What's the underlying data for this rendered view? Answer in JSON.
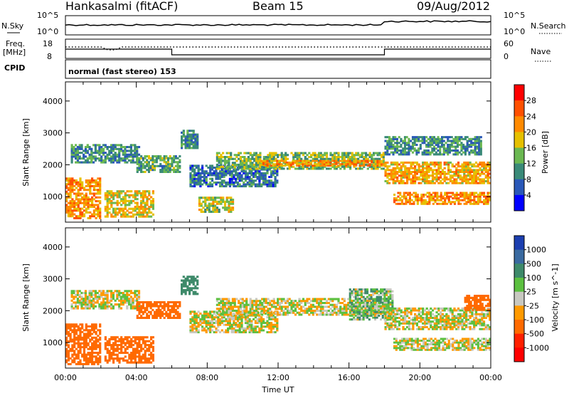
{
  "header": {
    "station": "Hankasalmi (fitACF)",
    "beam": "Beam 15",
    "date": "09/Aug/2012"
  },
  "strip_panels": {
    "nsky_label": "N.Sky",
    "nsearch_label": "N.Search",
    "counts_ticks": [
      "10^5",
      "10^0"
    ],
    "freq_label_1": "Freq.",
    "freq_label_2": "[MHz]",
    "freq_ticks": [
      "18",
      "8"
    ],
    "nave_ticks": [
      "60",
      "0"
    ],
    "nave_label": "Nave",
    "cpid_label": "CPID",
    "cpid_text": "normal (fast stereo) 153"
  },
  "chart_data": [
    {
      "type": "heatmap",
      "panel": "power",
      "ylabel": "Slant Range [km]",
      "xlabel": "Time UT",
      "x_ticks": [
        "00:00",
        "04:00",
        "08:00",
        "12:00",
        "16:00",
        "20:00",
        "00:00"
      ],
      "y_ticks": [
        1000,
        2000,
        3000,
        4000
      ],
      "ylim": [
        200,
        4600
      ],
      "xlim_hours": [
        0,
        24
      ],
      "colorbar": {
        "label": "Power [dB]",
        "ticks": [
          4,
          8,
          12,
          16,
          20,
          24,
          28
        ],
        "colors": [
          "#0000ff",
          "#2a58b8",
          "#3a8a78",
          "#6bb852",
          "#e6c000",
          "#ff8a00",
          "#ff5000",
          "#ff0000"
        ]
      },
      "echo_bands": [
        {
          "t0": 0.0,
          "t1": 2.0,
          "r0": 300,
          "r1": 1600,
          "level": 22
        },
        {
          "t0": 0.3,
          "t1": 4.2,
          "r0": 2050,
          "r1": 2650,
          "level": 10
        },
        {
          "t0": 2.2,
          "t1": 5.0,
          "r0": 350,
          "r1": 1200,
          "level": 18
        },
        {
          "t0": 4.0,
          "t1": 6.5,
          "r0": 1750,
          "r1": 2300,
          "level": 12
        },
        {
          "t0": 6.5,
          "t1": 7.5,
          "r0": 2500,
          "r1": 3100,
          "level": 9
        },
        {
          "t0": 7.0,
          "t1": 12.0,
          "r0": 1300,
          "r1": 2000,
          "level": 8
        },
        {
          "t0": 7.5,
          "t1": 9.5,
          "r0": 500,
          "r1": 1000,
          "level": 16
        },
        {
          "t0": 8.5,
          "t1": 18.0,
          "r0": 1850,
          "r1": 2400,
          "level": 14
        },
        {
          "t0": 11.0,
          "t1": 18.0,
          "r0": 1950,
          "r1": 2150,
          "level": 22
        },
        {
          "t0": 18.0,
          "t1": 24.0,
          "r0": 1400,
          "r1": 2100,
          "level": 20
        },
        {
          "t0": 18.5,
          "t1": 24.0,
          "r0": 750,
          "r1": 1150,
          "level": 22
        },
        {
          "t0": 18.0,
          "t1": 23.5,
          "r0": 2300,
          "r1": 2900,
          "level": 10
        }
      ]
    },
    {
      "type": "heatmap",
      "panel": "velocity",
      "ylabel": "Slant Range [km]",
      "xlabel": "Time UT",
      "x_ticks": [
        "00:00",
        "04:00",
        "08:00",
        "12:00",
        "16:00",
        "20:00",
        "00:00"
      ],
      "y_ticks": [
        1000,
        2000,
        3000,
        4000
      ],
      "ylim": [
        200,
        4600
      ],
      "xlim_hours": [
        0,
        24
      ],
      "colorbar": {
        "label": "Velocity [m s^-1]",
        "ticks": [
          1000,
          500,
          100,
          25,
          -25,
          -100,
          -500,
          -1000
        ],
        "colors": [
          "#1c3fb0",
          "#3a6aa0",
          "#3e8a6a",
          "#5cc040",
          "#c8c8c0",
          "#ff9a00",
          "#ff6a00",
          "#ff2000",
          "#ff0000"
        ]
      },
      "echo_bands": [
        {
          "t0": 0.0,
          "t1": 2.0,
          "r0": 300,
          "r1": 1600,
          "vel": -300
        },
        {
          "t0": 0.3,
          "t1": 4.2,
          "r0": 2050,
          "r1": 2650,
          "vel": 0
        },
        {
          "t0": 2.2,
          "t1": 5.0,
          "r0": 350,
          "r1": 1200,
          "vel": -200
        },
        {
          "t0": 4.0,
          "t1": 6.5,
          "r0": 1750,
          "r1": 2300,
          "vel": -300
        },
        {
          "t0": 6.5,
          "t1": 7.5,
          "r0": 2500,
          "r1": 3100,
          "vel": 400
        },
        {
          "t0": 7.0,
          "t1": 12.0,
          "r0": 1300,
          "r1": 2000,
          "vel": 0
        },
        {
          "t0": 8.5,
          "t1": 18.0,
          "r0": 1850,
          "r1": 2400,
          "vel": 0
        },
        {
          "t0": 16.0,
          "t1": 18.5,
          "r0": 1700,
          "r1": 2700,
          "vel": 60
        },
        {
          "t0": 18.0,
          "t1": 24.0,
          "r0": 1400,
          "r1": 2100,
          "vel": 0
        },
        {
          "t0": 18.5,
          "t1": 24.0,
          "r0": 750,
          "r1": 1150,
          "vel": 0
        },
        {
          "t0": 22.5,
          "t1": 24.0,
          "r0": 2000,
          "r1": 2500,
          "vel": -200
        }
      ]
    }
  ]
}
